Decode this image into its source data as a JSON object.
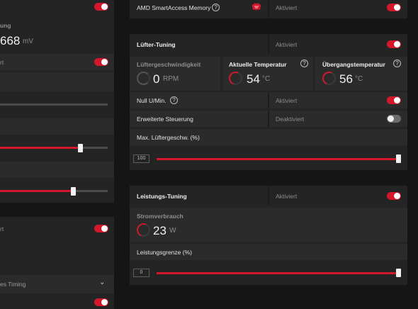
{
  "left": {
    "top_label_partial": "ung",
    "voltage_value": "668",
    "voltage_unit": "mV",
    "status_partial_1": "rt",
    "status_partial_2": "rt",
    "timing_label_partial": "es Timing"
  },
  "smart_access": {
    "label": "AMD SmartAccess Memory",
    "status": "Aktiviert"
  },
  "fan": {
    "title": "Lüfter-Tuning",
    "status": "Aktiviert",
    "speed_label": "Lüftergeschwindigkeit",
    "speed_value": "0",
    "speed_unit": "RPM",
    "temp_label": "Aktuelle Temperatur",
    "temp_value": "54",
    "temp_unit": "°C",
    "junction_label": "Übergangstemperatur",
    "junction_value": "56",
    "junction_unit": "°C",
    "zero_rpm_label": "Null U/Min.",
    "zero_rpm_status": "Aktiviert",
    "advanced_label": "Erweiterte Steuerung",
    "advanced_status": "Deaktiviert",
    "max_speed_label": "Max. Lüftergeschw. (%)",
    "max_speed_value": "100",
    "max_speed_fraction": 1.0
  },
  "power": {
    "title": "Leistungs-Tuning",
    "status": "Aktiviert",
    "consumption_label": "Stromverbrauch",
    "consumption_value": "23",
    "consumption_unit": "W",
    "limit_label": "Leistungsgrenze (%)",
    "limit_value": "0",
    "limit_fraction": 1.0
  },
  "colors": {
    "accent": "#d4182b",
    "panel": "#242424",
    "background": "#151515"
  }
}
